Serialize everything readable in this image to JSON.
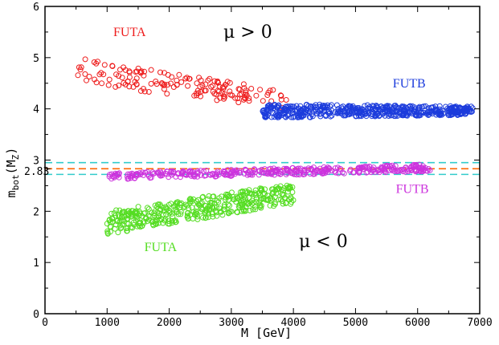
{
  "chart_data": {
    "type": "scatter",
    "title": "",
    "xlabel": "M [GeV]",
    "ylabel": "m_bot(M_Z)",
    "xlim": [
      0,
      7000
    ],
    "ylim": [
      0,
      6
    ],
    "x_ticks": [
      "0",
      "1000",
      "2000",
      "3000",
      "4000",
      "5000",
      "6000",
      "7000"
    ],
    "y_ticks": [
      "0",
      "1",
      "2",
      "3",
      "4",
      "5",
      "6"
    ],
    "grid": false,
    "extra_y_tick": {
      "label": "2.83",
      "value": 2.83
    },
    "reference_lines": [
      {
        "name": "upper-bound",
        "value": 2.95,
        "color": "#33cccc",
        "style": "dashed"
      },
      {
        "name": "central-value",
        "value": 2.83,
        "color": "#ff6600",
        "style": "dashed"
      },
      {
        "name": "lower-bound",
        "value": 2.72,
        "color": "#33cccc",
        "style": "dashed"
      }
    ],
    "annotations": {
      "mu_positive": "μ > 0",
      "mu_negative": "μ < 0"
    },
    "series": [
      {
        "name": "FUTA",
        "sign_mu": "positive",
        "color": "#ee1c1c",
        "x_range": [
          500,
          3900
        ],
        "y_start": [
          4.5,
          5.0
        ],
        "y_end": [
          4.0,
          4.35
        ],
        "count": 160
      },
      {
        "name": "FUTB",
        "sign_mu": "positive",
        "color": "#1c3cdc",
        "x_range": [
          3500,
          6900
        ],
        "y_start": [
          3.82,
          4.1
        ],
        "y_end": [
          3.88,
          4.05
        ],
        "count": 520
      },
      {
        "name": "FUTA",
        "sign_mu": "negative",
        "color": "#55dd22",
        "x_range": [
          1000,
          4000
        ],
        "y_start": [
          1.55,
          2.0
        ],
        "y_end": [
          2.15,
          2.55
        ],
        "count": 420
      },
      {
        "name": "FUTB",
        "sign_mu": "negative",
        "color": "#cc33dd",
        "x_range": [
          1000,
          6200
        ],
        "y_start": [
          2.62,
          2.75
        ],
        "y_end": [
          2.78,
          2.92
        ],
        "count": 380
      }
    ],
    "series_labels": [
      {
        "text": "FUTA",
        "color": "#ee1c1c",
        "x": 1100,
        "y": 5.42
      },
      {
        "text": "FUTB",
        "color": "#1c3cdc",
        "x": 5600,
        "y": 4.42
      },
      {
        "text": "FUTB",
        "color": "#cc33dd",
        "x": 5650,
        "y": 2.36
      },
      {
        "text": "FUTA",
        "color": "#55dd22",
        "x": 1600,
        "y": 1.22
      }
    ]
  }
}
